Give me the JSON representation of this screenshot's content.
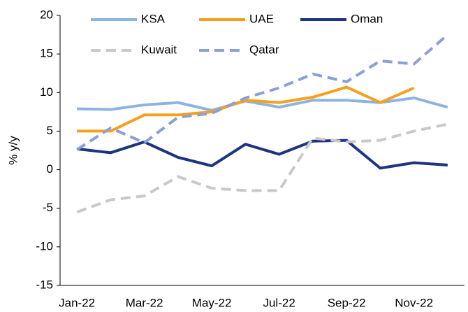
{
  "chart_data": {
    "type": "line",
    "ylabel": "% y/y",
    "categories": [
      "Jan-22",
      null,
      "Mar-22",
      null,
      "May-22",
      null,
      "Jul-22",
      null,
      "Sep-22",
      null,
      "Nov-22",
      null
    ],
    "series": [
      {
        "name": "KSA",
        "color": "#8db3e2",
        "dash": false,
        "values": [
          7.9,
          7.8,
          8.4,
          8.7,
          7.7,
          8.9,
          8.1,
          9.0,
          9.0,
          8.7,
          9.3,
          8.1
        ]
      },
      {
        "name": "UAE",
        "color": "#f7a01c",
        "dash": false,
        "values": [
          5.0,
          5.0,
          7.1,
          7.1,
          7.5,
          9.0,
          8.7,
          9.4,
          10.7,
          8.7,
          10.6,
          null
        ]
      },
      {
        "name": "Oman",
        "color": "#1c3481",
        "dash": false,
        "values": [
          2.7,
          2.2,
          3.6,
          1.6,
          0.5,
          3.3,
          2.0,
          3.7,
          3.8,
          0.2,
          0.9,
          0.6
        ]
      },
      {
        "name": "Kuwait",
        "color": "#c9c9c9",
        "dash": true,
        "values": [
          -5.5,
          -3.9,
          -3.4,
          -0.9,
          -2.4,
          -2.7,
          -2.7,
          4.1,
          3.6,
          3.8,
          5.0,
          5.9
        ]
      },
      {
        "name": "Qatar",
        "color": "#8b9fd8",
        "dash": true,
        "values": [
          2.6,
          5.4,
          3.5,
          6.8,
          7.3,
          9.3,
          10.6,
          12.4,
          11.4,
          14.1,
          13.7,
          17.5
        ]
      }
    ],
    "ylim": [
      -15,
      20
    ],
    "yticks": [
      -15,
      -10,
      -5,
      0,
      5,
      10,
      15,
      20
    ],
    "grid": false
  }
}
